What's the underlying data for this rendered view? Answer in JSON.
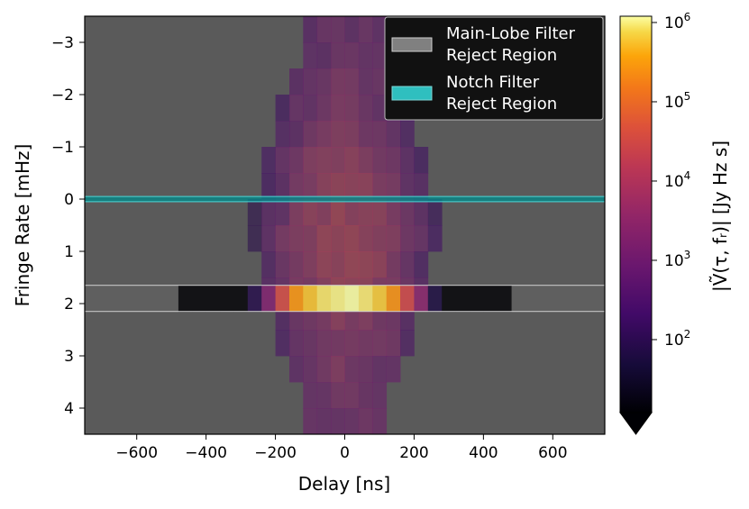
{
  "chart_data": {
    "type": "heatmap",
    "xlabel": "Delay [ns]",
    "ylabel": "Fringe Rate [mHz]",
    "xlim": [
      -750,
      750
    ],
    "ylim": [
      4.5,
      -3.5
    ],
    "x_ticks": [
      -600,
      -400,
      -200,
      0,
      200,
      400,
      600
    ],
    "x_tick_labels": [
      "−600",
      "−400",
      "−200",
      "0",
      "200",
      "400",
      "600"
    ],
    "y_ticks": [
      -3,
      -2,
      -1,
      0,
      1,
      2,
      3,
      4
    ],
    "y_tick_labels": [
      "−3",
      "−2",
      "−1",
      "0",
      "1",
      "2",
      "3",
      "4"
    ],
    "colorbar": {
      "label": "|Ṽ(τ, fᵣ)| [Jy Hz s]",
      "scale": "log",
      "cmap": "inferno",
      "range": [
        12,
        1200000
      ],
      "ticks": [
        100,
        1000,
        10000,
        100000,
        1000000
      ],
      "tick_bases": [
        "10",
        "10",
        "10",
        "10",
        "10"
      ],
      "tick_exponents": [
        "2",
        "3",
        "4",
        "5",
        "6"
      ],
      "extend": "min"
    },
    "delay_bins": [
      -460,
      -420,
      -380,
      -340,
      -300,
      -260,
      -220,
      -180,
      -140,
      -100,
      -60,
      -20,
      20,
      60,
      100,
      140,
      180,
      220,
      260,
      300,
      340,
      380,
      420,
      460
    ],
    "fringe_rate_bins": [
      -3.5,
      -3.0,
      -2.5,
      -2.0,
      -1.5,
      -1.0,
      -0.5,
      0.0,
      0.5,
      1.0,
      1.5,
      1.65,
      2.15,
      2.5,
      3.0,
      3.5,
      4.0,
      4.5
    ],
    "data_description_peak": {
      "delay": 0,
      "fringe_rate": 1.8,
      "amplitude": 1000000
    },
    "regions": [
      {
        "name": "Main-Lobe Filter\nReject Region",
        "fringe_rate_range": [
          1.65,
          2.15
        ],
        "color": "#808080"
      },
      {
        "name": "Notch Filter\nReject Region",
        "fringe_rate_range": [
          -0.05,
          0.05
        ],
        "color": "#008b8b"
      }
    ],
    "legend": {
      "location": "upper right",
      "entries": [
        {
          "line1": "Main-Lobe Filter",
          "line2": "Reject Region",
          "color": "#808080"
        },
        {
          "line1": "Notch Filter",
          "line2": "Reject Region",
          "color": "#2fbfbf"
        }
      ]
    },
    "background_color": "#5a5a5a"
  }
}
